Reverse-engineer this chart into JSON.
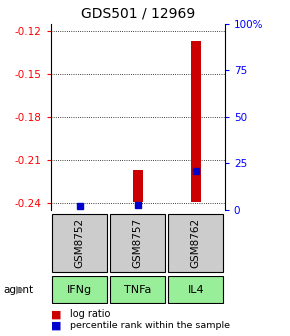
{
  "title": "GDS501 / 12969",
  "samples": [
    "GSM8752",
    "GSM8757",
    "GSM8762"
  ],
  "agents": [
    "IFNg",
    "TNFa",
    "IL4"
  ],
  "log_ratios": [
    -0.2395,
    -0.217,
    -0.127
  ],
  "percentile_ranks": [
    2.0,
    2.5,
    21.0
  ],
  "ylim_left": [
    -0.245,
    -0.115
  ],
  "ylim_right": [
    0,
    100
  ],
  "yticks_left": [
    -0.24,
    -0.21,
    -0.18,
    -0.15,
    -0.12
  ],
  "yticks_right": [
    0,
    25,
    50,
    75,
    100
  ],
  "ytick_labels_right": [
    "0",
    "25",
    "50",
    "75",
    "100%"
  ],
  "bar_color": "#cc0000",
  "dot_color": "#0000cc",
  "sample_bg": "#cccccc",
  "agent_bg": "#99ee99",
  "baseline": -0.2395,
  "bar_width": 0.18
}
